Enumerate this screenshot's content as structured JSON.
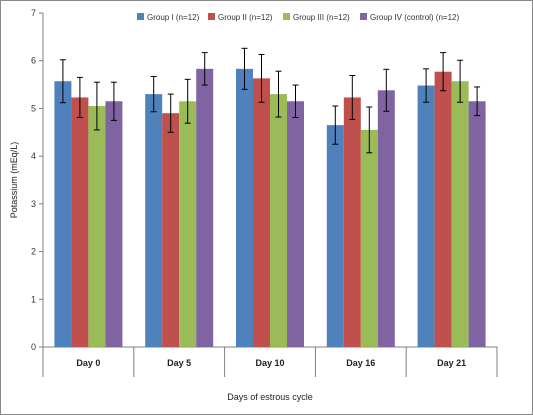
{
  "chart_data": {
    "type": "bar",
    "title": "",
    "xlabel": "Days of estrous cycle",
    "ylabel": "Potassium (mEq/L)",
    "ylim": [
      0,
      7
    ],
    "yticks": [
      "0",
      "1",
      "2",
      "3",
      "4",
      "5",
      "6",
      "7"
    ],
    "categories": [
      "Day 0",
      "Day 5",
      "Day 10",
      "Day 16",
      "Day 21"
    ],
    "legend_position": "top",
    "grid": false,
    "series": [
      {
        "name": "Group I (n=12)",
        "color": "#4F81BD",
        "values": [
          5.57,
          5.3,
          5.83,
          4.65,
          5.48
        ],
        "errors": [
          0.45,
          0.37,
          0.43,
          0.4,
          0.35
        ]
      },
      {
        "name": "Group II (n=12)",
        "color": "#C0504D",
        "values": [
          5.23,
          4.9,
          5.63,
          5.23,
          5.77
        ],
        "errors": [
          0.42,
          0.4,
          0.5,
          0.46,
          0.4
        ]
      },
      {
        "name": "Group III (n=12)",
        "color": "#9BBB59",
        "values": [
          5.05,
          5.15,
          5.3,
          4.55,
          5.57
        ],
        "errors": [
          0.5,
          0.46,
          0.48,
          0.48,
          0.44
        ]
      },
      {
        "name": "Group IV (control) (n=12)",
        "color": "#8064A2",
        "values": [
          5.15,
          5.83,
          5.15,
          5.38,
          5.15
        ],
        "errors": [
          0.4,
          0.34,
          0.34,
          0.44,
          0.3
        ]
      }
    ]
  }
}
